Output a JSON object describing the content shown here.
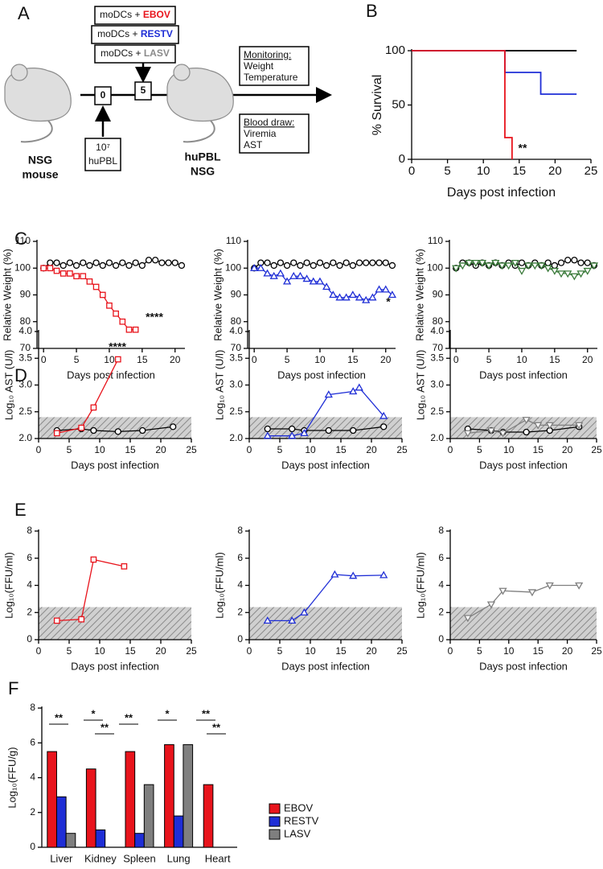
{
  "panel_labels": [
    "A",
    "B",
    "C",
    "D",
    "E",
    "F"
  ],
  "diagram": {
    "infections": [
      {
        "cells": "moDCs +",
        "virus": "EBOV",
        "color": "#e8141c"
      },
      {
        "cells": "moDCs +",
        "virus": "RESTV",
        "color": "#1f2ed6"
      },
      {
        "cells": "moDCs +",
        "virus": "LASV",
        "color": "#8a8a8a"
      }
    ],
    "day_start": "0",
    "day_infection": "5",
    "dose": {
      "amount": "10⁷",
      "cells": "huPBL"
    },
    "mouse_start": [
      "NSG",
      "mouse"
    ],
    "mouse_end": [
      "huPBL",
      "NSG"
    ],
    "monitoring": {
      "heading": "Monitoring:",
      "items": [
        "Weight",
        "Temperature"
      ]
    },
    "blood_draw": {
      "heading": "Blood draw:",
      "items": [
        "Viremia",
        "AST"
      ]
    }
  },
  "chart_data": [
    {
      "type": "step",
      "x_label": "Days post infection",
      "y_label": "% Survival",
      "xlim": [
        0,
        25
      ],
      "ylim": [
        0,
        100
      ],
      "xticks": [
        0,
        5,
        10,
        15,
        20,
        25
      ],
      "yticks": [
        0,
        50,
        100
      ],
      "annotations": [
        "**"
      ],
      "series": [
        {
          "color": "#8a8a8a",
          "x": [
            0,
            23
          ],
          "values": [
            100,
            100
          ]
        },
        {
          "color": "#000000",
          "x": [
            0,
            23
          ],
          "values": [
            100,
            100
          ]
        },
        {
          "color": "#1f2ed6",
          "x": [
            0,
            13,
            18,
            23
          ],
          "values": [
            100,
            80,
            60,
            60
          ]
        },
        {
          "color": "#e8141c",
          "x": [
            0,
            13,
            14
          ],
          "values": [
            100,
            20,
            0
          ]
        }
      ]
    },
    {
      "type": "line",
      "x_label": "Days post infection",
      "y_label": "Relative Weight  (%)",
      "xlim": [
        -1,
        21.5
      ],
      "ylim": [
        70,
        110
      ],
      "xticks": [
        0,
        5,
        10,
        15,
        20
      ],
      "yticks": [
        70,
        80,
        90,
        100,
        110
      ],
      "annotations": [
        "****"
      ],
      "series": [
        {
          "color": "#000000",
          "marker": "circle",
          "x": [
            0,
            1,
            2,
            3,
            4,
            5,
            6,
            7,
            8,
            9,
            10,
            11,
            12,
            13,
            14,
            15,
            16,
            17,
            18,
            19,
            20,
            21
          ],
          "values": [
            100,
            102,
            102,
            101,
            102,
            101,
            102,
            101,
            102,
            101,
            102,
            101,
            102,
            101,
            102,
            101,
            103,
            103,
            102,
            102,
            102,
            101
          ]
        },
        {
          "color": "#e8141c",
          "marker": "square",
          "x": [
            0,
            1,
            2,
            3,
            4,
            5,
            6,
            7,
            8,
            9,
            10,
            11,
            12,
            13,
            14
          ],
          "values": [
            100,
            100,
            99,
            98,
            98,
            97,
            97,
            95,
            93,
            90,
            86,
            83,
            80,
            77,
            77
          ]
        }
      ]
    },
    {
      "type": "line",
      "x_label": "Days post infection",
      "y_label": "Relative Weight  (%)",
      "xlim": [
        -1,
        21.5
      ],
      "ylim": [
        70,
        110
      ],
      "xticks": [
        0,
        5,
        10,
        15,
        20
      ],
      "yticks": [
        70,
        80,
        90,
        100,
        110
      ],
      "annotations": [
        "*"
      ],
      "series": [
        {
          "color": "#000000",
          "marker": "circle",
          "x": [
            0,
            1,
            2,
            3,
            4,
            5,
            6,
            7,
            8,
            9,
            10,
            11,
            12,
            13,
            14,
            15,
            16,
            17,
            18,
            19,
            20,
            21
          ],
          "values": [
            100,
            102,
            102,
            101,
            102,
            101,
            102,
            101,
            102,
            101,
            102,
            101,
            102,
            101,
            102,
            101,
            102,
            102,
            102,
            102,
            102,
            101
          ]
        },
        {
          "color": "#1f2ed6",
          "marker": "triangle",
          "x": [
            0,
            1,
            2,
            3,
            4,
            5,
            6,
            7,
            8,
            9,
            10,
            11,
            12,
            13,
            14,
            15,
            16,
            17,
            18,
            19,
            20,
            21
          ],
          "values": [
            100,
            100,
            98,
            97,
            98,
            95,
            97,
            97,
            96,
            95,
            95,
            93,
            90,
            89,
            89,
            90,
            89,
            88,
            89,
            92,
            92,
            90
          ]
        }
      ]
    },
    {
      "type": "line",
      "x_label": "Days post infection",
      "y_label": "Relative Weight  (%)",
      "xlim": [
        -1,
        21.5
      ],
      "ylim": [
        70,
        110
      ],
      "xticks": [
        0,
        5,
        10,
        15,
        20
      ],
      "yticks": [
        70,
        80,
        90,
        100,
        110
      ],
      "annotations": [],
      "series": [
        {
          "color": "#000000",
          "marker": "circle",
          "x": [
            0,
            1,
            2,
            3,
            4,
            5,
            6,
            7,
            8,
            9,
            10,
            11,
            12,
            13,
            14,
            15,
            16,
            17,
            18,
            19,
            20,
            21
          ],
          "values": [
            100,
            102,
            102,
            101,
            102,
            101,
            102,
            101,
            102,
            101,
            102,
            101,
            102,
            101,
            102,
            101,
            102,
            103,
            103,
            102,
            102,
            101
          ]
        },
        {
          "color": "#3a7a3a",
          "marker": "triangle-down",
          "x": [
            0,
            1,
            2,
            3,
            4,
            5,
            6,
            7,
            8,
            9,
            10,
            11,
            12,
            13,
            14,
            15,
            16,
            17,
            18,
            19,
            20,
            21
          ],
          "values": [
            100,
            101,
            102,
            102,
            102,
            101,
            102,
            101,
            101,
            102,
            99,
            101,
            101,
            101,
            100,
            99,
            98,
            98,
            97,
            98,
            99,
            101
          ]
        }
      ]
    },
    {
      "type": "line",
      "x_label": "Days post infection",
      "y_label": "Log₁₀ AST (U/l)",
      "xlim": [
        0,
        25
      ],
      "ylim": [
        2,
        4
      ],
      "xticks": [
        0,
        5,
        10,
        15,
        20,
        25
      ],
      "yticks": [
        {
          "value": 2,
          "label": "2.0"
        },
        2.5,
        {
          "value": 3,
          "label": "3.0"
        },
        3.5,
        {
          "value": 4,
          "label": "4.0"
        }
      ],
      "band": [
        2,
        2.4
      ],
      "annotations": [
        "****"
      ],
      "series": [
        {
          "color": "#000000",
          "marker": "circle",
          "x": [
            3,
            7,
            9,
            13,
            17,
            22
          ],
          "values": [
            2.15,
            2.18,
            2.15,
            2.13,
            2.15,
            2.22
          ]
        },
        {
          "color": "#e8141c",
          "marker": "square",
          "x": [
            3,
            7,
            9,
            13
          ],
          "values": [
            2.1,
            2.2,
            2.58,
            3.48
          ]
        }
      ]
    },
    {
      "type": "line",
      "x_label": "Days post infection",
      "y_label": "Log₁₀ AST (U/l)",
      "xlim": [
        0,
        25
      ],
      "ylim": [
        2,
        4
      ],
      "xticks": [
        0,
        5,
        10,
        15,
        20,
        25
      ],
      "yticks": [
        {
          "value": 2,
          "label": "2.0"
        },
        2.5,
        {
          "value": 3,
          "label": "3.0"
        },
        3.5,
        {
          "value": 4,
          "label": "4.0"
        }
      ],
      "band": [
        2,
        2.4
      ],
      "annotations": [],
      "series": [
        {
          "color": "#000000",
          "marker": "circle",
          "x": [
            3,
            7,
            9,
            13,
            17,
            22
          ],
          "values": [
            2.18,
            2.18,
            2.15,
            2.15,
            2.15,
            2.22
          ]
        },
        {
          "color": "#1f2ed6",
          "marker": "triangle",
          "x": [
            3,
            7,
            9,
            13,
            17,
            18,
            22
          ],
          "values": [
            2.05,
            2.05,
            2.1,
            2.82,
            2.88,
            2.95,
            2.42
          ]
        }
      ]
    },
    {
      "type": "line",
      "x_label": "Days post infection",
      "y_label": "Log₁₀ AST (U/l)",
      "xlim": [
        0,
        25
      ],
      "ylim": [
        2,
        4
      ],
      "xticks": [
        0,
        5,
        10,
        15,
        20,
        25
      ],
      "yticks": [
        {
          "value": 2,
          "label": "2.0"
        },
        2.5,
        {
          "value": 3,
          "label": "3.0"
        },
        3.5,
        {
          "value": 4,
          "label": "4.0"
        }
      ],
      "band": [
        2,
        2.4
      ],
      "annotations": [],
      "series": [
        {
          "color": "#000000",
          "marker": "circle",
          "x": [
            3,
            7,
            9,
            13,
            17,
            22
          ],
          "values": [
            2.18,
            2.15,
            2.12,
            2.12,
            2.15,
            2.22
          ]
        },
        {
          "color": "#7f7f7f",
          "marker": "triangle-down",
          "x": [
            3,
            7,
            9,
            13,
            15,
            17,
            22
          ],
          "values": [
            2.1,
            2.15,
            2.1,
            2.35,
            2.25,
            2.25,
            2.25
          ]
        }
      ]
    },
    {
      "type": "line",
      "x_label": "Days post infection",
      "y_label": "Log₁₀(FFU/ml)",
      "xlim": [
        0,
        25
      ],
      "ylim": [
        0,
        8
      ],
      "xticks": [
        0,
        5,
        10,
        15,
        20,
        25
      ],
      "yticks": [
        0,
        2,
        4,
        6,
        8
      ],
      "band": [
        0,
        2.4
      ],
      "annotations": [],
      "series": [
        {
          "color": "#e8141c",
          "marker": "square",
          "x": [
            3,
            7,
            9,
            14
          ],
          "values": [
            1.4,
            1.5,
            5.9,
            5.4
          ]
        }
      ]
    },
    {
      "type": "line",
      "x_label": "Days post infection",
      "y_label": "Log₁₀(FFU/ml)",
      "xlim": [
        0,
        25
      ],
      "ylim": [
        0,
        8
      ],
      "xticks": [
        0,
        5,
        10,
        15,
        20,
        25
      ],
      "yticks": [
        0,
        2,
        4,
        6,
        8
      ],
      "band": [
        0,
        2.4
      ],
      "annotations": [],
      "series": [
        {
          "color": "#1f2ed6",
          "marker": "triangle",
          "x": [
            3,
            7,
            9,
            14,
            17,
            22
          ],
          "values": [
            1.4,
            1.4,
            2.0,
            4.8,
            4.7,
            4.75
          ]
        }
      ]
    },
    {
      "type": "line",
      "x_label": "Days post infection",
      "y_label": "Log₁₀(FFU/ml)",
      "xlim": [
        0,
        25
      ],
      "ylim": [
        0,
        8
      ],
      "xticks": [
        0,
        5,
        10,
        15,
        20,
        25
      ],
      "yticks": [
        0,
        2,
        4,
        6,
        8
      ],
      "band": [
        0,
        2.4
      ],
      "annotations": [],
      "series": [
        {
          "color": "#7f7f7f",
          "marker": "triangle-down",
          "x": [
            3,
            7,
            9,
            14,
            17,
            22
          ],
          "values": [
            1.6,
            2.6,
            3.6,
            3.5,
            4.0,
            4.0
          ]
        }
      ]
    },
    {
      "type": "bar",
      "y_label": "Log₁₀(FFU/g)",
      "categories": [
        "Liver",
        "Kidney",
        "Spleen",
        "Lung",
        "Heart"
      ],
      "ylim": [
        0,
        8
      ],
      "yticks": [
        0,
        2,
        4,
        6,
        8
      ],
      "annotations": [
        "**",
        "*",
        "**",
        "**",
        "*",
        "**",
        "**"
      ],
      "series": [
        {
          "name": "EBOV",
          "color": "#e8141c",
          "values": [
            5.5,
            4.5,
            5.5,
            5.9,
            3.6
          ]
        },
        {
          "name": "RESTV",
          "color": "#1f2ed6",
          "values": [
            2.9,
            1.0,
            0.8,
            1.8,
            0
          ]
        },
        {
          "name": "LASV",
          "color": "#7f7f7f",
          "values": [
            0.8,
            0,
            3.6,
            5.9,
            0
          ]
        }
      ]
    }
  ]
}
